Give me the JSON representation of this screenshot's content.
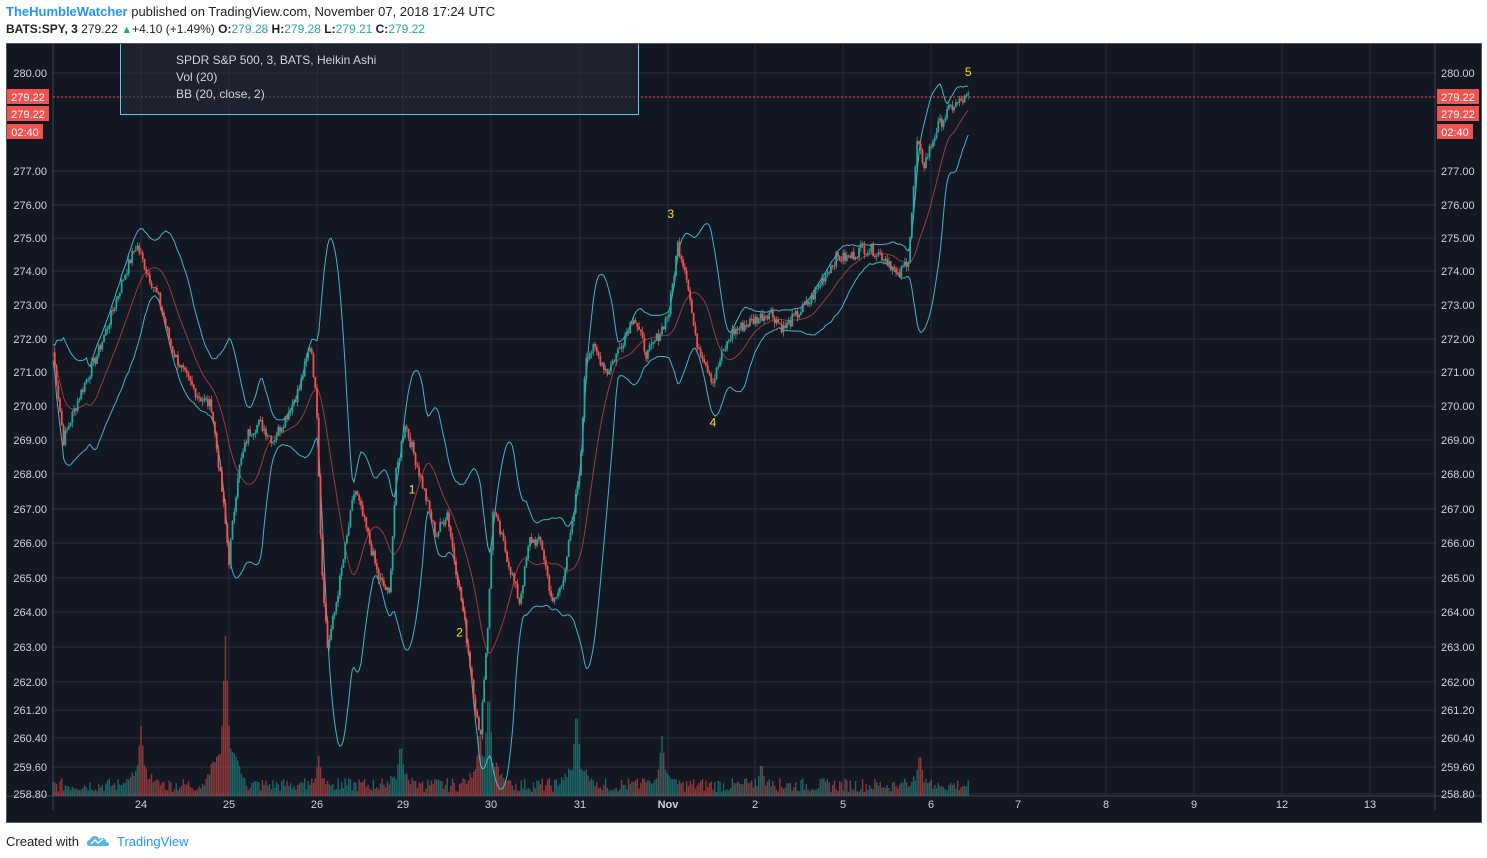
{
  "header": {
    "author": "TheHumbleWatcher",
    "published_text": "published on TradingView.com, November 07, 2018 17:24 UTC",
    "symbol": "BATS:SPY, 3",
    "last": "279.22",
    "change": "+4.10 (+1.49%)",
    "o_label": "O:",
    "o_value": "279.28",
    "h_label": "H:",
    "h_value": "279.28",
    "l_label": "L:",
    "l_value": "279.21",
    "c_label": "C:",
    "c_value": "279.22"
  },
  "legend": {
    "line1": "SPDR S&P 500, 3, BATS, Heikin Ashi",
    "line2": "Vol (20)",
    "line3": "BB (20, close, 2)"
  },
  "price_tags": {
    "last_price": "279.22",
    "price2": "279.22",
    "countdown": "02:40"
  },
  "footer": {
    "created_with": "Created with",
    "brand": "TradingView"
  },
  "colors": {
    "background": "#131722",
    "up": "#26a69a",
    "down": "#ef5350",
    "bands": "#4dd0e1",
    "grid": "#2a2e39",
    "axis_text": "#cfd3dc",
    "wave_label": "#f5e133",
    "price_tag": "#ef5350"
  },
  "chart_data": {
    "type": "candlestick",
    "style": "Heikin Ashi",
    "y_ticks": [
      "280.00",
      "277.00",
      "276.00",
      "275.00",
      "274.00",
      "273.00",
      "272.00",
      "271.00",
      "270.00",
      "269.00",
      "268.00",
      "267.00",
      "266.00",
      "265.00",
      "264.00",
      "263.00",
      "262.00",
      "261.20",
      "260.40",
      "259.60",
      "258.80"
    ],
    "x_ticks": [
      "24",
      "25",
      "26",
      "29",
      "30",
      "31",
      "Nov",
      "2",
      "5",
      "6",
      "7",
      "8",
      "9",
      "12",
      "13"
    ],
    "wave_labels": [
      {
        "label": "1",
        "day": 4.08,
        "price": 267.45
      },
      {
        "label": "2",
        "day": 4.62,
        "price": 263.3
      },
      {
        "label": "3",
        "day": 7.02,
        "price": 275.6
      },
      {
        "label": "4",
        "day": 7.5,
        "price": 269.4
      },
      {
        "label": "5",
        "day": 10.4,
        "price": 279.9
      }
    ],
    "close_path": [
      [
        0.0,
        271.6
      ],
      [
        0.12,
        269.0
      ],
      [
        0.3,
        270.3
      ],
      [
        0.5,
        271.5
      ],
      [
        0.65,
        272.6
      ],
      [
        0.8,
        273.8
      ],
      [
        0.95,
        274.8
      ],
      [
        1.05,
        274.1
      ],
      [
        1.2,
        273.2
      ],
      [
        1.35,
        271.7
      ],
      [
        1.5,
        270.9
      ],
      [
        1.65,
        270.3
      ],
      [
        1.8,
        270.0
      ],
      [
        1.93,
        267.3
      ],
      [
        2.0,
        265.5
      ],
      [
        2.1,
        268.0
      ],
      [
        2.22,
        269.2
      ],
      [
        2.35,
        269.5
      ],
      [
        2.5,
        269.0
      ],
      [
        2.65,
        269.7
      ],
      [
        2.8,
        270.5
      ],
      [
        2.93,
        271.9
      ],
      [
        3.0,
        269.8
      ],
      [
        3.05,
        265.5
      ],
      [
        3.12,
        263.0
      ],
      [
        3.2,
        264.0
      ],
      [
        3.33,
        266.0
      ],
      [
        3.43,
        267.6
      ],
      [
        3.55,
        266.5
      ],
      [
        3.7,
        265.0
      ],
      [
        3.82,
        264.5
      ],
      [
        3.9,
        268.0
      ],
      [
        4.0,
        269.5
      ],
      [
        4.1,
        268.6
      ],
      [
        4.22,
        267.5
      ],
      [
        4.35,
        266.2
      ],
      [
        4.48,
        266.9
      ],
      [
        4.55,
        265.7
      ],
      [
        4.65,
        264.2
      ],
      [
        4.75,
        262.3
      ],
      [
        4.85,
        260.3
      ],
      [
        4.95,
        264.0
      ],
      [
        5.0,
        267.0
      ],
      [
        5.15,
        265.7
      ],
      [
        5.3,
        264.3
      ],
      [
        5.42,
        266.1
      ],
      [
        5.55,
        266.0
      ],
      [
        5.68,
        264.2
      ],
      [
        5.78,
        264.8
      ],
      [
        5.9,
        266.5
      ],
      [
        6.0,
        268.5
      ],
      [
        6.05,
        271.5
      ],
      [
        6.15,
        271.7
      ],
      [
        6.3,
        271.0
      ],
      [
        6.45,
        271.8
      ],
      [
        6.6,
        272.7
      ],
      [
        6.75,
        271.5
      ],
      [
        6.9,
        272.2
      ],
      [
        7.0,
        272.8
      ],
      [
        7.1,
        274.8
      ],
      [
        7.2,
        273.9
      ],
      [
        7.3,
        272.0
      ],
      [
        7.4,
        271.4
      ],
      [
        7.5,
        270.7
      ],
      [
        7.6,
        271.5
      ],
      [
        7.72,
        272.2
      ],
      [
        7.85,
        272.4
      ],
      [
        8.0,
        272.6
      ],
      [
        8.15,
        272.8
      ],
      [
        8.3,
        272.3
      ],
      [
        8.45,
        272.7
      ],
      [
        8.6,
        273.1
      ],
      [
        8.75,
        273.8
      ],
      [
        8.9,
        274.4
      ],
      [
        9.05,
        274.4
      ],
      [
        9.2,
        274.7
      ],
      [
        9.35,
        274.6
      ],
      [
        9.5,
        274.3
      ],
      [
        9.6,
        273.8
      ],
      [
        9.72,
        274.4
      ],
      [
        9.82,
        277.8
      ],
      [
        9.9,
        277.2
      ],
      [
        10.05,
        278.3
      ],
      [
        10.2,
        278.9
      ],
      [
        10.4,
        279.22
      ]
    ],
    "volume_spikes": [
      {
        "day": 1.96,
        "value": 32
      },
      {
        "day": 1.0,
        "value": 14
      },
      {
        "day": 3.02,
        "value": 8
      },
      {
        "day": 4.95,
        "value": 22
      },
      {
        "day": 5.95,
        "value": 18
      },
      {
        "day": 6.92,
        "value": 12
      },
      {
        "day": 8.05,
        "value": 7
      },
      {
        "day": 9.85,
        "value": 9
      },
      {
        "day": 3.95,
        "value": 11
      },
      {
        "day": 4.85,
        "value": 14
      }
    ]
  }
}
